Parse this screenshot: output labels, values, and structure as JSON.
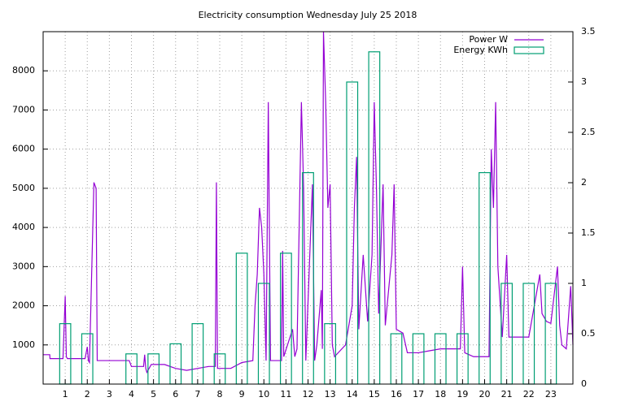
{
  "chart_data": {
    "type": "line",
    "title": "Electricity consumption Wednesday July 25 2018",
    "xlim": [
      0,
      24
    ],
    "xticks": [
      1,
      2,
      3,
      4,
      5,
      6,
      7,
      8,
      9,
      10,
      11,
      12,
      13,
      14,
      15,
      16,
      17,
      18,
      19,
      20,
      21,
      22,
      23
    ],
    "ylim": [
      0,
      9000
    ],
    "yticks": [
      1000,
      2000,
      3000,
      4000,
      5000,
      6000,
      7000,
      8000
    ],
    "y2lim": [
      0,
      3.5
    ],
    "y2ticks": [
      0,
      0.5,
      1,
      1.5,
      2,
      2.5,
      3,
      3.5
    ],
    "grid": true,
    "legend": "top-right",
    "series": [
      {
        "name": "Power W",
        "color": "#9400d3",
        "x": [
          0,
          0.3,
          0.31,
          0.9,
          1.0,
          1.05,
          1.1,
          1.9,
          2.0,
          2.05,
          2.1,
          2.3,
          2.4,
          2.45,
          3.9,
          4.0,
          4.55,
          4.6,
          4.65,
          4.7,
          4.9,
          5.5,
          6.0,
          6.5,
          7.5,
          7.8,
          7.85,
          7.9,
          8.5,
          9.0,
          9.5,
          9.6,
          9.7,
          9.8,
          9.9,
          10.0,
          10.1,
          10.2,
          10.3,
          10.8,
          10.85,
          10.9,
          11.3,
          11.4,
          11.5,
          11.7,
          11.8,
          11.9,
          12.2,
          12.3,
          12.4,
          12.6,
          12.65,
          12.7,
          12.8,
          12.9,
          13.0,
          13.1,
          13.2,
          13.7,
          14.0,
          14.1,
          14.2,
          14.3,
          14.5,
          14.7,
          14.9,
          15.0,
          15.1,
          15.2,
          15.4,
          15.5,
          15.8,
          15.9,
          16.0,
          16.3,
          16.5,
          17.0,
          17.5,
          18.0,
          18.9,
          19.0,
          19.1,
          19.5,
          20.2,
          20.3,
          20.4,
          20.5,
          20.6,
          20.8,
          21.0,
          21.1,
          22.0,
          22.5,
          22.6,
          22.8,
          23.0,
          23.3,
          23.4,
          23.5,
          23.7,
          23.9,
          24.0
        ],
        "values": [
          750,
          750,
          650,
          650,
          2250,
          700,
          650,
          650,
          950,
          600,
          550,
          5150,
          5000,
          600,
          600,
          450,
          450,
          750,
          400,
          300,
          500,
          500,
          400,
          350,
          450,
          450,
          5150,
          400,
          400,
          550,
          600,
          2000,
          2800,
          4500,
          4000,
          2800,
          600,
          7200,
          600,
          600,
          3400,
          700,
          1400,
          700,
          900,
          7200,
          5000,
          600,
          5100,
          600,
          1000,
          2400,
          900,
          9000,
          7200,
          4500,
          5100,
          1000,
          700,
          1000,
          2000,
          4500,
          5800,
          1400,
          3300,
          1600,
          3300,
          7200,
          5000,
          1800,
          5100,
          1500,
          3300,
          5100,
          1400,
          1300,
          800,
          800,
          850,
          900,
          900,
          3000,
          800,
          700,
          700,
          6000,
          4500,
          7200,
          3000,
          1200,
          3300,
          1200,
          1200,
          2800,
          1800,
          1600,
          1550,
          3000,
          1500,
          1000,
          900,
          2500,
          1000
        ]
      },
      {
        "name": "Energy KWh",
        "color": "#009e73",
        "type": "bar",
        "axis": "y2",
        "x": [
          1,
          2,
          4,
          5,
          6,
          7,
          8,
          9,
          10,
          11,
          12,
          13,
          14,
          15,
          16,
          17,
          18,
          19,
          20,
          21,
          22,
          23
        ],
        "values": [
          0.6,
          0.5,
          0.3,
          0.3,
          0.4,
          0.6,
          0.3,
          1.3,
          1.0,
          1.3,
          2.1,
          0.6,
          3.0,
          3.3,
          0.5,
          0.5,
          0.5,
          0.5,
          2.1,
          1.0,
          1.0,
          1.0
        ]
      }
    ]
  }
}
